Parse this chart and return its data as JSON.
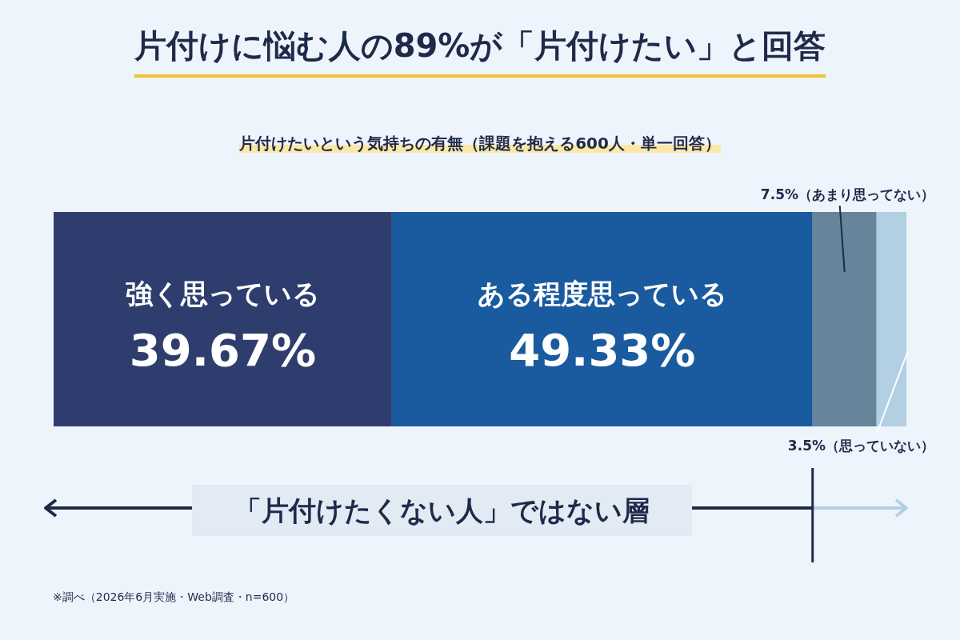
{
  "chart_data": {
    "type": "bar",
    "orientation": "horizontal",
    "stacked": true,
    "title": "片付けに悩む人の89%が「片付けたい」と回答",
    "subtitle": "片付けたいという気持ちの有無（課題を抱える600人・単一回答）",
    "categories": [
      null
    ],
    "xlim": [
      0,
      100
    ],
    "series": [
      {
        "name": "強く思っている",
        "color": "#2e3d6e",
        "values": [
          39.67
        ],
        "value_labels": [
          "39.67%"
        ]
      },
      {
        "name": "ある程度思っている",
        "color": "#1a5a9e",
        "values": [
          49.33
        ],
        "value_labels": [
          "49.33%"
        ]
      },
      {
        "color": "#66849a",
        "values": [
          7.5
        ],
        "value_labels": [
          "7.5%（あまり思ってない）"
        ]
      },
      {
        "color": "#b3d0e3",
        "values": [
          3.5
        ],
        "value_labels": [
          "3.5%（思っていない）"
        ]
      }
    ],
    "annotations": [
      "「片付けたくない人」ではない層",
      "※調べ（2026年6月実施・Web調査・n=600）"
    ]
  }
}
